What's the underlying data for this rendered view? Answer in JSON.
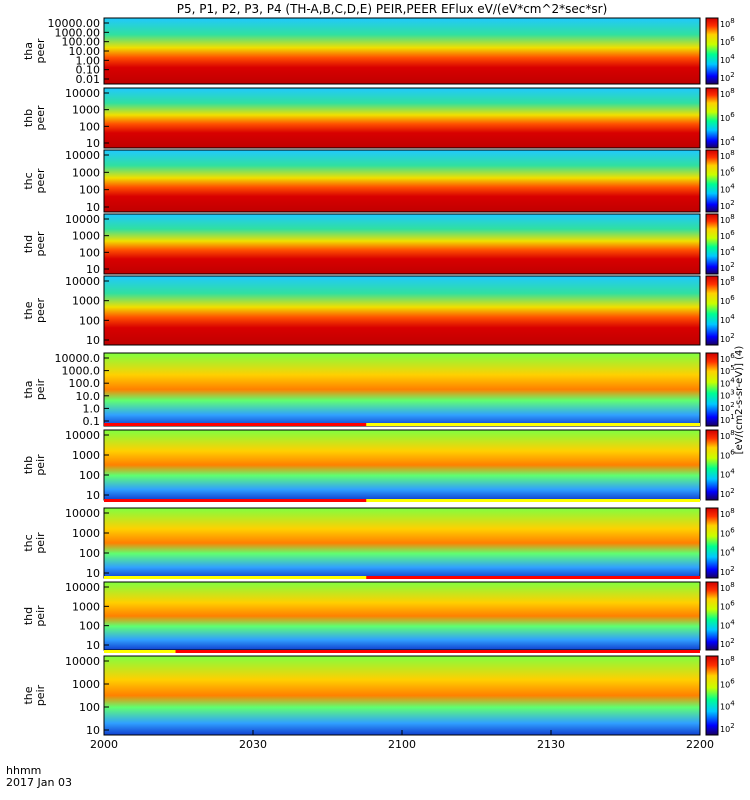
{
  "chart_data": {
    "type": "heatmap",
    "title": "P5, P1, P2, P3, P4 (TH-A,B,C,D,E) PEIR,PEER EFlux eV/(eV*cm^2*sec*sr)",
    "time_axis": {
      "ticks": [
        "2000",
        "2030",
        "2100",
        "2130",
        "2200"
      ],
      "label_line1": "hhmm",
      "label_line2": "2017 Jan 03"
    },
    "colorbar_label": "[eV/(cm2-s-sr-eV)] (4)",
    "panels": [
      {
        "id": "tha-peer",
        "label_line1": "tha",
        "label_line2": "peer",
        "yticks": [
          "10000.00",
          "1000.00",
          "100.00",
          "10.00",
          "1.00",
          "0.10",
          "0.01"
        ],
        "cbticks": [
          "10^8",
          "10^6",
          "10^4",
          "10^2"
        ]
      },
      {
        "id": "thb-peer",
        "label_line1": "thb",
        "label_line2": "peer",
        "yticks": [
          "10000",
          "1000",
          "100",
          "10"
        ],
        "cbticks": [
          "10^8",
          "10^6",
          "10^4"
        ]
      },
      {
        "id": "thc-peer",
        "label_line1": "thc",
        "label_line2": "peer",
        "yticks": [
          "10000",
          "1000",
          "100",
          "10"
        ],
        "cbticks": [
          "10^8",
          "10^6",
          "10^4",
          "10^2"
        ]
      },
      {
        "id": "thd-peer",
        "label_line1": "thd",
        "label_line2": "peer",
        "yticks": [
          "10000",
          "1000",
          "100",
          "10"
        ],
        "cbticks": [
          "10^8",
          "10^6",
          "10^4",
          "10^2"
        ]
      },
      {
        "id": "the-peer",
        "label_line1": "the",
        "label_line2": "peer",
        "yticks": [
          "10000",
          "1000",
          "100",
          "10"
        ],
        "cbticks": [
          "10^8",
          "10^6",
          "10^4",
          "10^2"
        ]
      },
      {
        "id": "tha-peir",
        "label_line1": "tha",
        "label_line2": "peir",
        "yticks": [
          "10000.0",
          "1000.0",
          "100.0",
          "10.0",
          "1.0",
          "0.1"
        ],
        "cbticks": [
          "10^6",
          "10^5",
          "10^4",
          "10^3",
          "10^2",
          "10^1"
        ]
      },
      {
        "id": "thb-peir",
        "label_line1": "thb",
        "label_line2": "peir",
        "yticks": [
          "10000",
          "1000",
          "100",
          "10"
        ],
        "cbticks": [
          "10^8",
          "10^6",
          "10^4",
          "10^2"
        ]
      },
      {
        "id": "thc-peir",
        "label_line1": "thc",
        "label_line2": "peir",
        "yticks": [
          "10000",
          "1000",
          "100",
          "10"
        ],
        "cbticks": [
          "10^8",
          "10^6",
          "10^4",
          "10^2"
        ]
      },
      {
        "id": "thd-peir",
        "label_line1": "thd",
        "label_line2": "peir",
        "yticks": [
          "10000",
          "1000",
          "100",
          "10"
        ],
        "cbticks": [
          "10^8",
          "10^6",
          "10^4",
          "10^2"
        ]
      },
      {
        "id": "the-peir",
        "label_line1": "the",
        "label_line2": "peir",
        "yticks": [
          "10000",
          "1000",
          "100",
          "10"
        ],
        "cbticks": [
          "10^8",
          "10^6",
          "10^4",
          "10^2"
        ]
      }
    ]
  }
}
